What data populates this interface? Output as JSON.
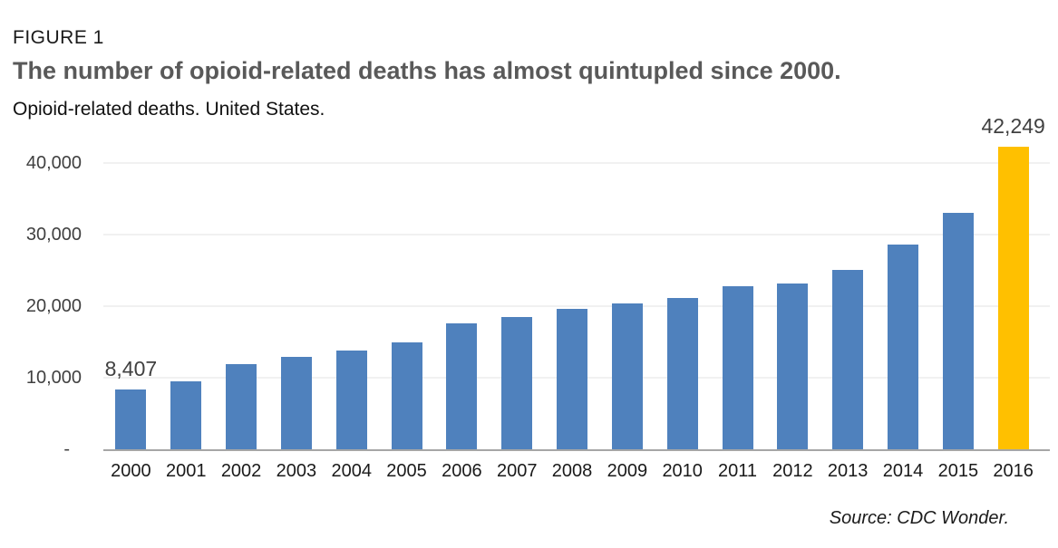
{
  "header": {
    "figure_label": "FIGURE 1",
    "title": "The number of opioid-related deaths has almost quintupled since 2000.",
    "subtitle": "Opioid-related deaths. United States."
  },
  "footer": {
    "source": "Source: CDC Wonder."
  },
  "colors": {
    "bar": "#4F81BD",
    "highlight": "#FFC000",
    "gridline": "#F1F1F1",
    "axis_line": "#A6A6A6",
    "title_gray": "#595959"
  },
  "chart_data": {
    "type": "bar",
    "title": "The number of opioid-related deaths has almost quintupled since 2000.",
    "subtitle": "Opioid-related deaths. United States.",
    "xlabel": "",
    "ylabel": "",
    "ylim": [
      0,
      40000
    ],
    "grid": true,
    "legend": false,
    "categories": [
      "2000",
      "2001",
      "2002",
      "2003",
      "2004",
      "2005",
      "2006",
      "2007",
      "2008",
      "2009",
      "2010",
      "2011",
      "2012",
      "2013",
      "2014",
      "2015",
      "2016"
    ],
    "values": [
      8407,
      9496,
      11920,
      12940,
      13756,
      14918,
      17545,
      18516,
      19582,
      20422,
      21089,
      22784,
      23166,
      25052,
      28647,
      33091,
      42249
    ],
    "value_labels": {
      "0": "8,407",
      "16": "42,249"
    },
    "highlight_index": 16,
    "y_ticks": [
      "40,000",
      "30,000",
      "20,000",
      "10,000",
      "-"
    ],
    "y_tick_values": [
      40000,
      30000,
      20000,
      10000,
      0
    ]
  }
}
